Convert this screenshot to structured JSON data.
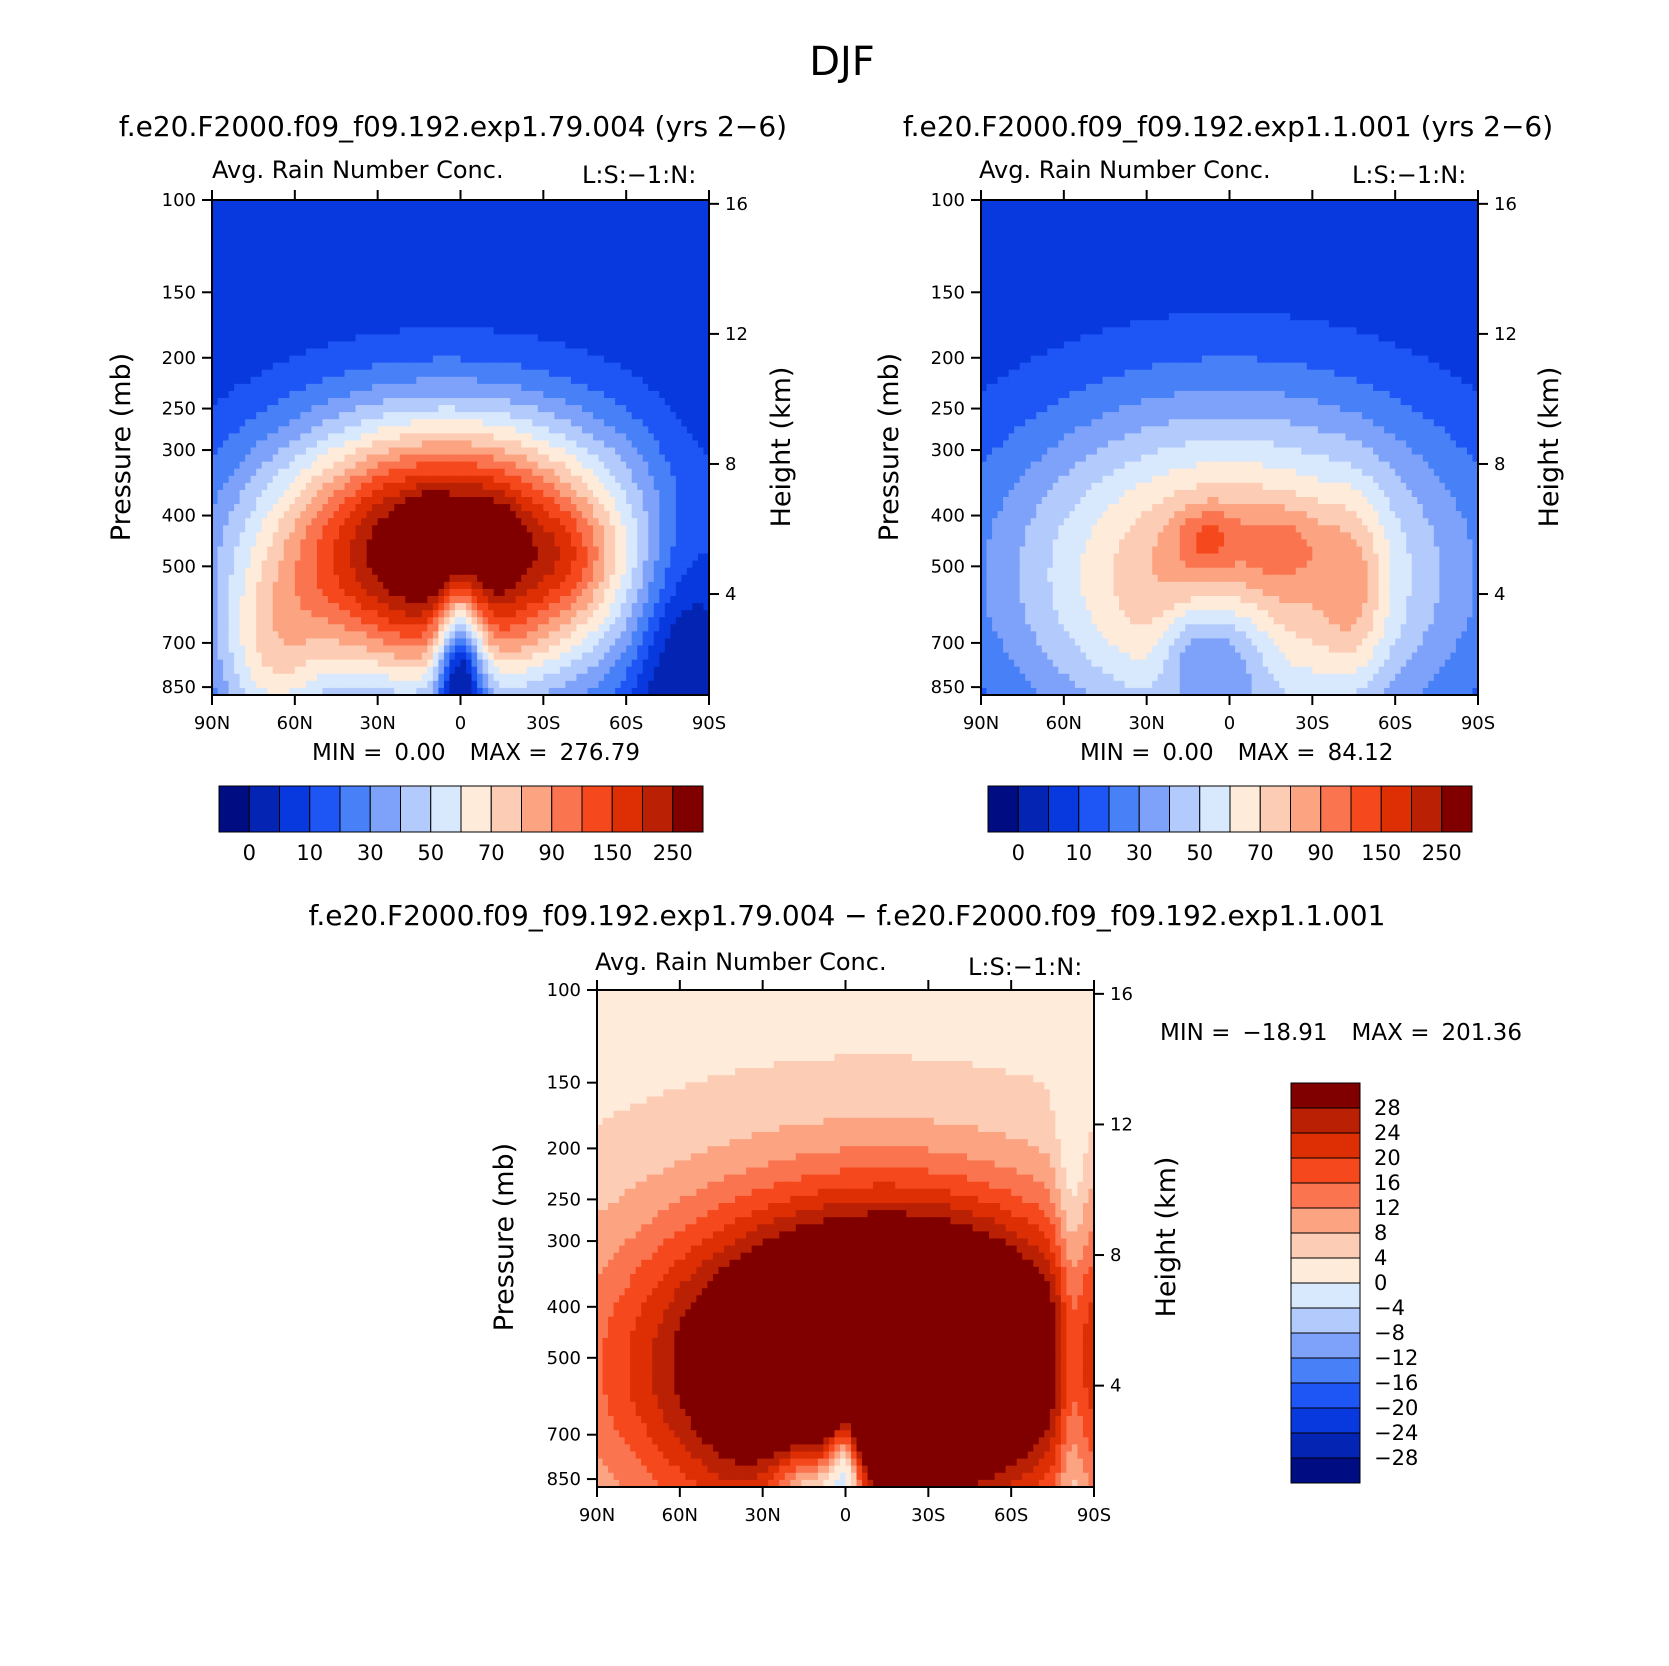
{
  "figure": {
    "title": "DJF",
    "colors": {
      "scale": [
        "#000c82",
        "#0425b4",
        "#0839de",
        "#1e55f5",
        "#4880f8",
        "#7ea2fa",
        "#b3cafc",
        "#d8e8fd",
        "#feebda",
        "#fdccb5",
        "#fca482",
        "#fb7450",
        "#f5481c",
        "#dd2e04",
        "#b92004",
        "#800000"
      ],
      "scale_diff": [
        "#800000",
        "#b92004",
        "#dd2e04",
        "#f5481c",
        "#fb7450",
        "#fca482",
        "#fdccb5",
        "#feebda",
        "#d8e8fd",
        "#b3cafc",
        "#7ea2fa",
        "#4880f8",
        "#1e55f5",
        "#0839de",
        "#0425b4",
        "#000c82"
      ]
    }
  },
  "chart_data": [
    {
      "type": "heatmap",
      "name": "panel-exp1-79-004",
      "title": "f.e20.F2000.f09_f09.192.exp1.79.004 (yrs 2−6)",
      "subtitle": "Avg. Rain Number Conc.",
      "right_note": "L:S:−1:N:",
      "xlabel": "",
      "ylabel": "Pressure (mb)",
      "ylabel_right": "Height (km)",
      "x_ticks": [
        "90N",
        "60N",
        "30N",
        "0",
        "30S",
        "60S",
        "90S"
      ],
      "x_values": [
        -90,
        -60,
        -30,
        0,
        30,
        60,
        90
      ],
      "xlim": [
        -90,
        90
      ],
      "y_ticks": [
        100,
        150,
        200,
        250,
        300,
        400,
        500,
        700,
        850
      ],
      "ylim": [
        100,
        880
      ],
      "y_scale": "log",
      "right_ticks": [
        16,
        12,
        8,
        4
      ],
      "min_label": "MIN =",
      "min": "0.00",
      "max_label": "MAX =",
      "max": "276.79",
      "colorbar_labels": [
        "0",
        "10",
        "30",
        "50",
        "70",
        "90",
        "150",
        "250"
      ],
      "colorbar_orientation": "horizontal",
      "max_region": {
        "lat_range": [
          -70,
          70
        ],
        "p_range": [
          330,
          880
        ],
        "peak_lat": [
          -10,
          10,
          40
        ],
        "peak_p": 440
      }
    },
    {
      "type": "heatmap",
      "name": "panel-exp1-1-001",
      "title": "f.e20.F2000.f09_f09.192.exp1.1.001 (yrs 2−6)",
      "subtitle": "Avg. Rain Number Conc.",
      "right_note": "L:S:−1:N:",
      "xlabel": "",
      "ylabel": "Pressure (mb)",
      "ylabel_right": "Height (km)",
      "x_ticks": [
        "90N",
        "60N",
        "30N",
        "0",
        "30S",
        "60S",
        "90S"
      ],
      "x_values": [
        -90,
        -60,
        -30,
        0,
        30,
        60,
        90
      ],
      "xlim": [
        -90,
        90
      ],
      "y_ticks": [
        100,
        150,
        200,
        250,
        300,
        400,
        500,
        700,
        850
      ],
      "ylim": [
        100,
        880
      ],
      "y_scale": "log",
      "right_ticks": [
        16,
        12,
        8,
        4
      ],
      "min_label": "MIN =",
      "min": "0.00",
      "max_label": "MAX =",
      "max": "84.12",
      "colorbar_labels": [
        "0",
        "10",
        "30",
        "50",
        "70",
        "90",
        "150",
        "250"
      ],
      "colorbar_orientation": "horizontal"
    },
    {
      "type": "heatmap",
      "name": "panel-difference",
      "title": "f.e20.F2000.f09_f09.192.exp1.79.004 − f.e20.F2000.f09_f09.192.exp1.1.001",
      "subtitle": "Avg. Rain Number Conc.",
      "right_note": "L:S:−1:N:",
      "xlabel": "",
      "ylabel": "Pressure (mb)",
      "ylabel_right": "Height (km)",
      "x_ticks": [
        "90N",
        "60N",
        "30N",
        "0",
        "30S",
        "60S",
        "90S"
      ],
      "x_values": [
        -90,
        -60,
        -30,
        0,
        30,
        60,
        90
      ],
      "xlim": [
        -90,
        90
      ],
      "y_ticks": [
        100,
        150,
        200,
        250,
        300,
        400,
        500,
        700,
        850
      ],
      "ylim": [
        100,
        880
      ],
      "y_scale": "log",
      "right_ticks": [
        16,
        12,
        8,
        4
      ],
      "min_label": "MIN =",
      "min": "−18.91",
      "max_label": "MAX =",
      "max": "201.36",
      "colorbar_labels": [
        "28",
        "24",
        "20",
        "16",
        "12",
        "8",
        "4",
        "0",
        "−4",
        "−8",
        "−12",
        "−16",
        "−20",
        "−24",
        "−28"
      ],
      "colorbar_orientation": "vertical"
    }
  ]
}
